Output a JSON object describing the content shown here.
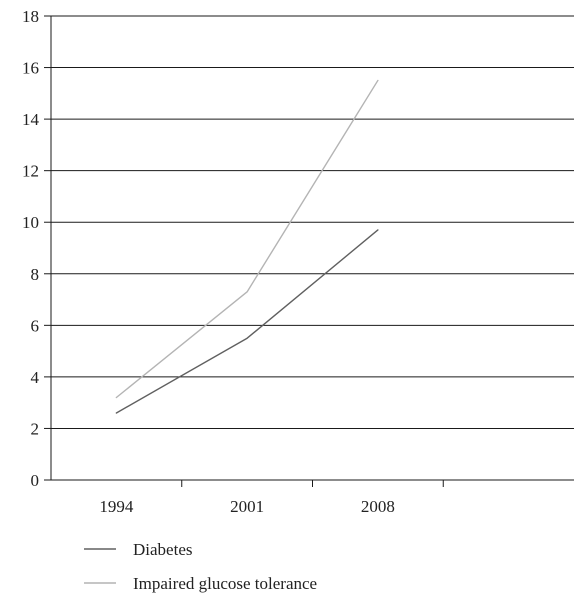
{
  "chart_data": {
    "type": "line",
    "title": "",
    "xlabel": "",
    "ylabel": "",
    "categories": [
      "1994",
      "2001",
      "2008"
    ],
    "extra_category_slots": 1,
    "ylim": [
      0,
      18
    ],
    "yticks": [
      0,
      2,
      4,
      6,
      8,
      10,
      12,
      14,
      16,
      18
    ],
    "grid": "horizontal",
    "legend_position": "bottom-left",
    "series": [
      {
        "name": "Diabetes",
        "values": [
          2.6,
          5.5,
          9.7
        ],
        "color": "#606060"
      },
      {
        "name": "Impaired glucose tolerance",
        "values": [
          3.2,
          7.3,
          15.5
        ],
        "color": "#b4b4b4"
      }
    ]
  }
}
